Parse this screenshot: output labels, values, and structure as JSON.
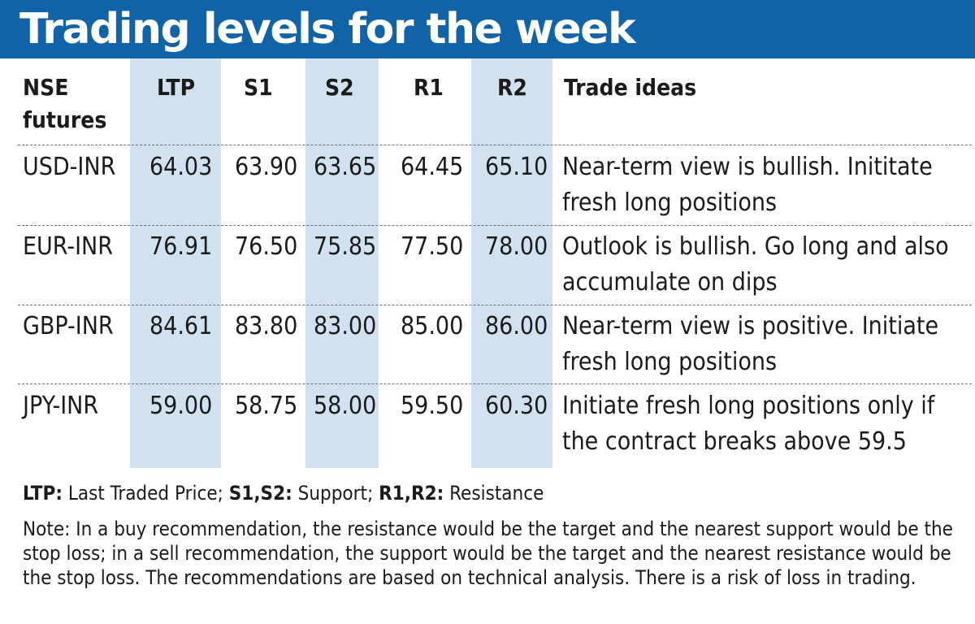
{
  "title": "Trading levels for the week",
  "headers": {
    "pair_line1": "NSE",
    "pair_line2": "futures",
    "ltp": "LTP",
    "s1": "S1",
    "s2": "S2",
    "r1": "R1",
    "r2": "R2",
    "ideas": "Trade ideas"
  },
  "rows": [
    {
      "pair": "USD-INR",
      "ltp": "64.03",
      "s1": "63.90",
      "s2": "63.65",
      "r1": "64.45",
      "r2": "65.10",
      "idea": "Near-term view is bullish. Inititate fresh long positions"
    },
    {
      "pair": "EUR-INR",
      "ltp": "76.91",
      "s1": "76.50",
      "s2": "75.85",
      "r1": "77.50",
      "r2": "78.00",
      "idea": "Outlook is bullish. Go long and also accumulate on dips"
    },
    {
      "pair": "GBP-INR",
      "ltp": "84.61",
      "s1": "83.80",
      "s2": "83.00",
      "r1": "85.00",
      "r2": "86.00",
      "idea": "Near-term view is positive. Initiate fresh long positions"
    },
    {
      "pair": "JPY-INR",
      "ltp": "59.00",
      "s1": "58.75",
      "s2": "58.00",
      "r1": "59.50",
      "r2": "60.30",
      "idea": "Initiate fresh long positions only if the contract breaks above 59.5"
    }
  ],
  "legend": {
    "ltp_key": "LTP:",
    "ltp_text": " Last Traded Price; ",
    "s_key": "S1,S2:",
    "s_text": " Support; ",
    "r_key": "R1,R2:",
    "r_text": " Resistance"
  },
  "note": "Note: In a buy recommendation, the resistance would be the target and the nearest support would be the stop loss; in a sell recommendation, the support would be the target and the nearest resistance would be the stop loss. The recommendations are based on technical analysis. There is a risk of loss in trading.",
  "colors": {
    "title_bar": "#1063a6",
    "column_band": "#d2e1ef",
    "title_text": "#ffffff"
  }
}
